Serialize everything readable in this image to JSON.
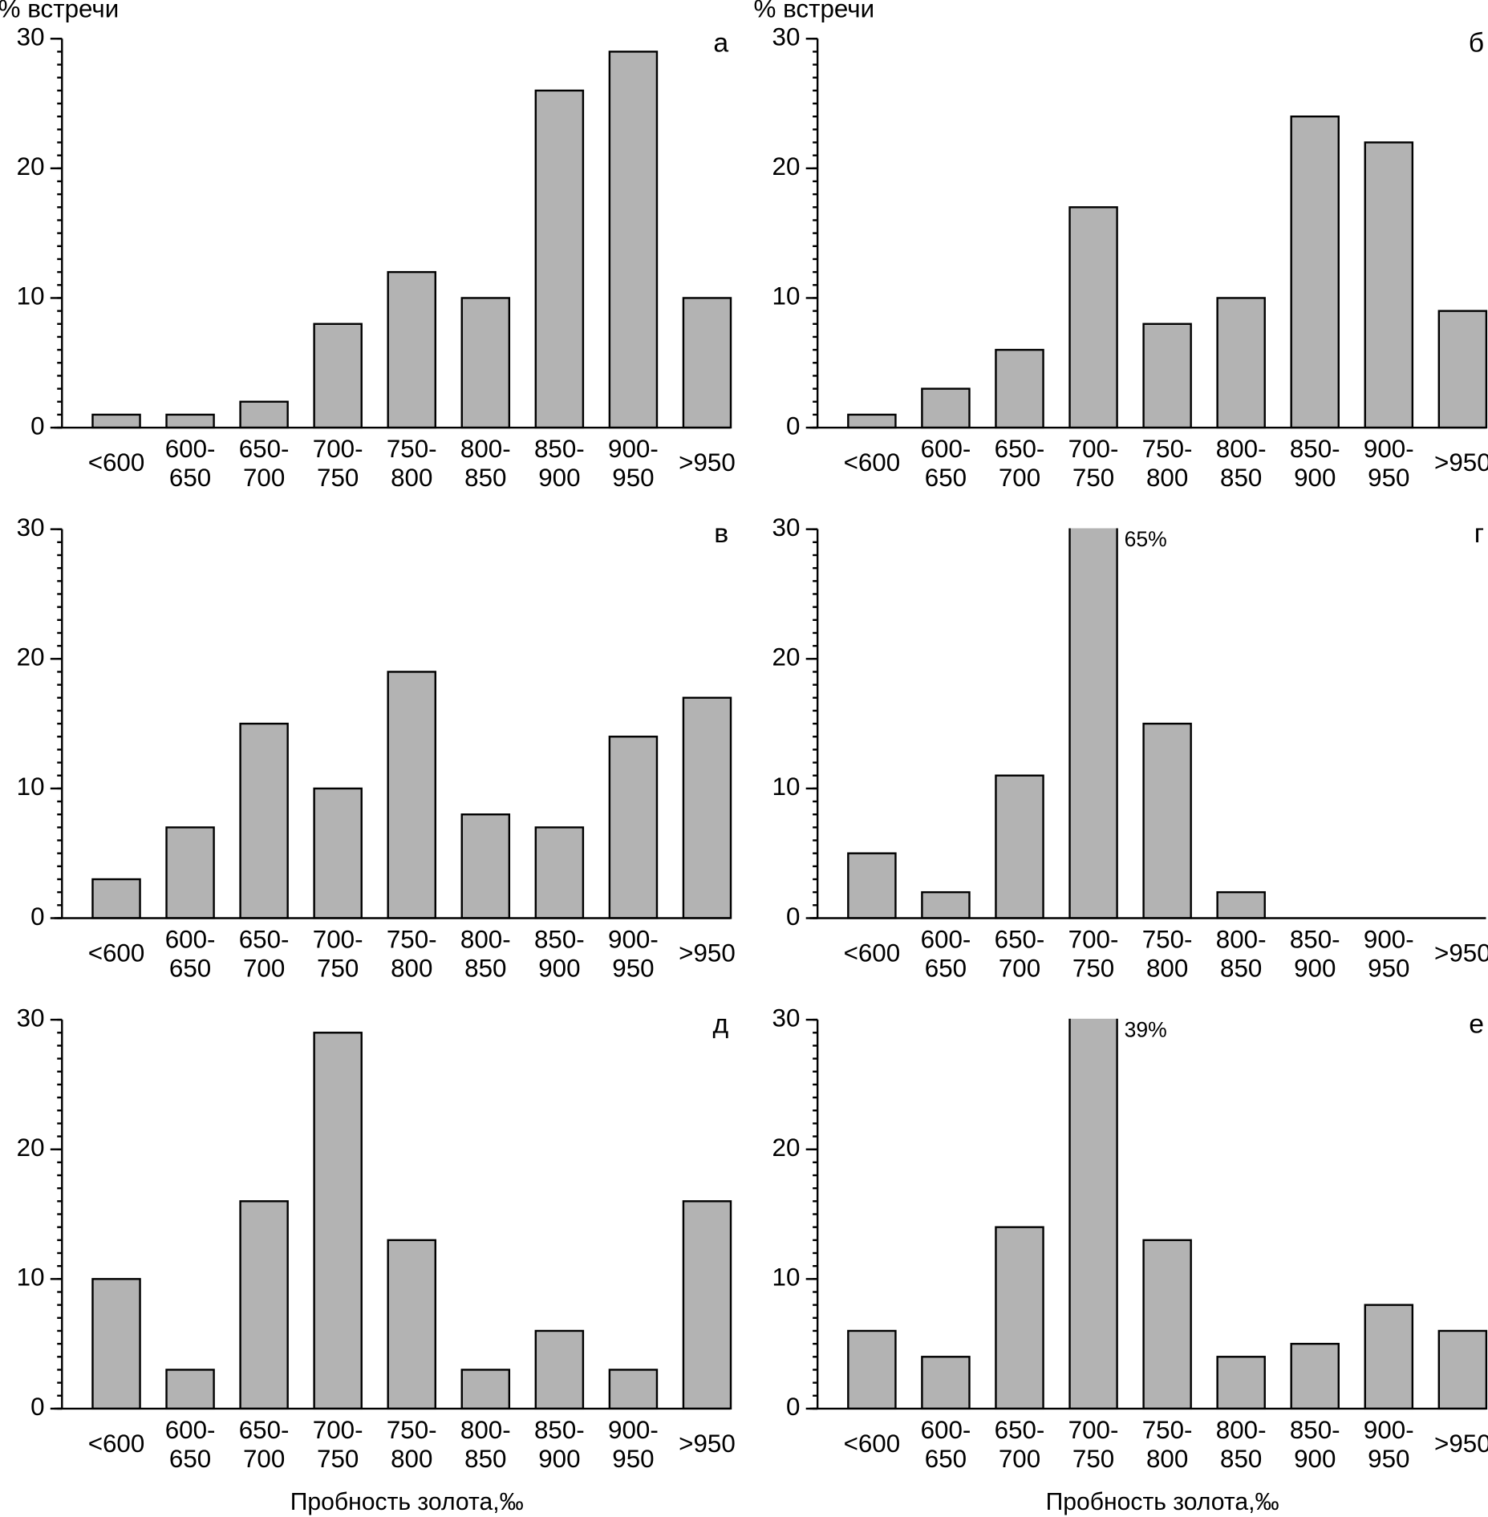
{
  "chart_data": [
    {
      "type": "bar",
      "label": "а",
      "ylabel": "% встречи",
      "categories": [
        "<600",
        "600-650",
        "650-700",
        "700-750",
        "750-800",
        "800-850",
        "850-900",
        "900-950",
        ">950"
      ],
      "values": [
        1,
        1,
        2,
        8,
        12,
        10,
        26,
        29,
        10
      ],
      "color": "#b3b3b3",
      "ylim": [
        0,
        30
      ],
      "yticks": [
        0,
        10,
        20,
        30
      ],
      "yminor": 1
    },
    {
      "type": "bar",
      "label": "б",
      "ylabel": "% встречи",
      "categories": [
        "<600",
        "600-650",
        "650-700",
        "700-750",
        "750-800",
        "800-850",
        "850-900",
        "900-950",
        ">950"
      ],
      "values": [
        1,
        3,
        6,
        17,
        8,
        10,
        24,
        22,
        9
      ],
      "color": "#b3b3b3",
      "ylim": [
        0,
        30
      ],
      "yticks": [
        0,
        10,
        20,
        30
      ],
      "yminor": 1
    },
    {
      "type": "bar",
      "label": "в",
      "categories": [
        "<600",
        "600-650",
        "650-700",
        "700-750",
        "750-800",
        "800-850",
        "850-900",
        "900-950",
        ">950"
      ],
      "values": [
        3,
        7,
        15,
        10,
        19,
        8,
        7,
        14,
        17
      ],
      "color": "#b3b3b3",
      "ylim": [
        0,
        30
      ],
      "yticks": [
        0,
        10,
        20,
        30
      ],
      "yminor": 1
    },
    {
      "type": "bar",
      "label": "г",
      "categories": [
        "<600",
        "600-650",
        "650-700",
        "700-750",
        "750-800",
        "800-850",
        "850-900",
        "900-950",
        ">950"
      ],
      "values": [
        5,
        2,
        11,
        65,
        15,
        2,
        0,
        0,
        0
      ],
      "value_labels": [
        null,
        null,
        null,
        "65%",
        null,
        null,
        null,
        null,
        null
      ],
      "color": "#b3b3b3",
      "ylim": [
        0,
        30
      ],
      "yticks": [
        0,
        10,
        20,
        30
      ],
      "yminor": 1
    },
    {
      "type": "bar",
      "label": "д",
      "xlabel": "Пробность золота,‰",
      "categories": [
        "<600",
        "600-650",
        "650-700",
        "700-750",
        "750-800",
        "800-850",
        "850-900",
        "900-950",
        ">950"
      ],
      "values": [
        10,
        3,
        16,
        29,
        13,
        3,
        6,
        3,
        16
      ],
      "color": "#b3b3b3",
      "ylim": [
        0,
        30
      ],
      "yticks": [
        0,
        10,
        20,
        30
      ],
      "yminor": 1
    },
    {
      "type": "bar",
      "label": "е",
      "xlabel": "Пробность золота,‰",
      "categories": [
        "<600",
        "600-650",
        "650-700",
        "700-750",
        "750-800",
        "800-850",
        "850-900",
        "900-950",
        ">950"
      ],
      "values": [
        6,
        4,
        14,
        39,
        13,
        4,
        5,
        8,
        6
      ],
      "value_labels": [
        null,
        null,
        null,
        "39%",
        null,
        null,
        null,
        null,
        null
      ],
      "color": "#b3b3b3",
      "ylim": [
        0,
        30
      ],
      "yticks": [
        0,
        10,
        20,
        30
      ],
      "yminor": 1
    }
  ]
}
